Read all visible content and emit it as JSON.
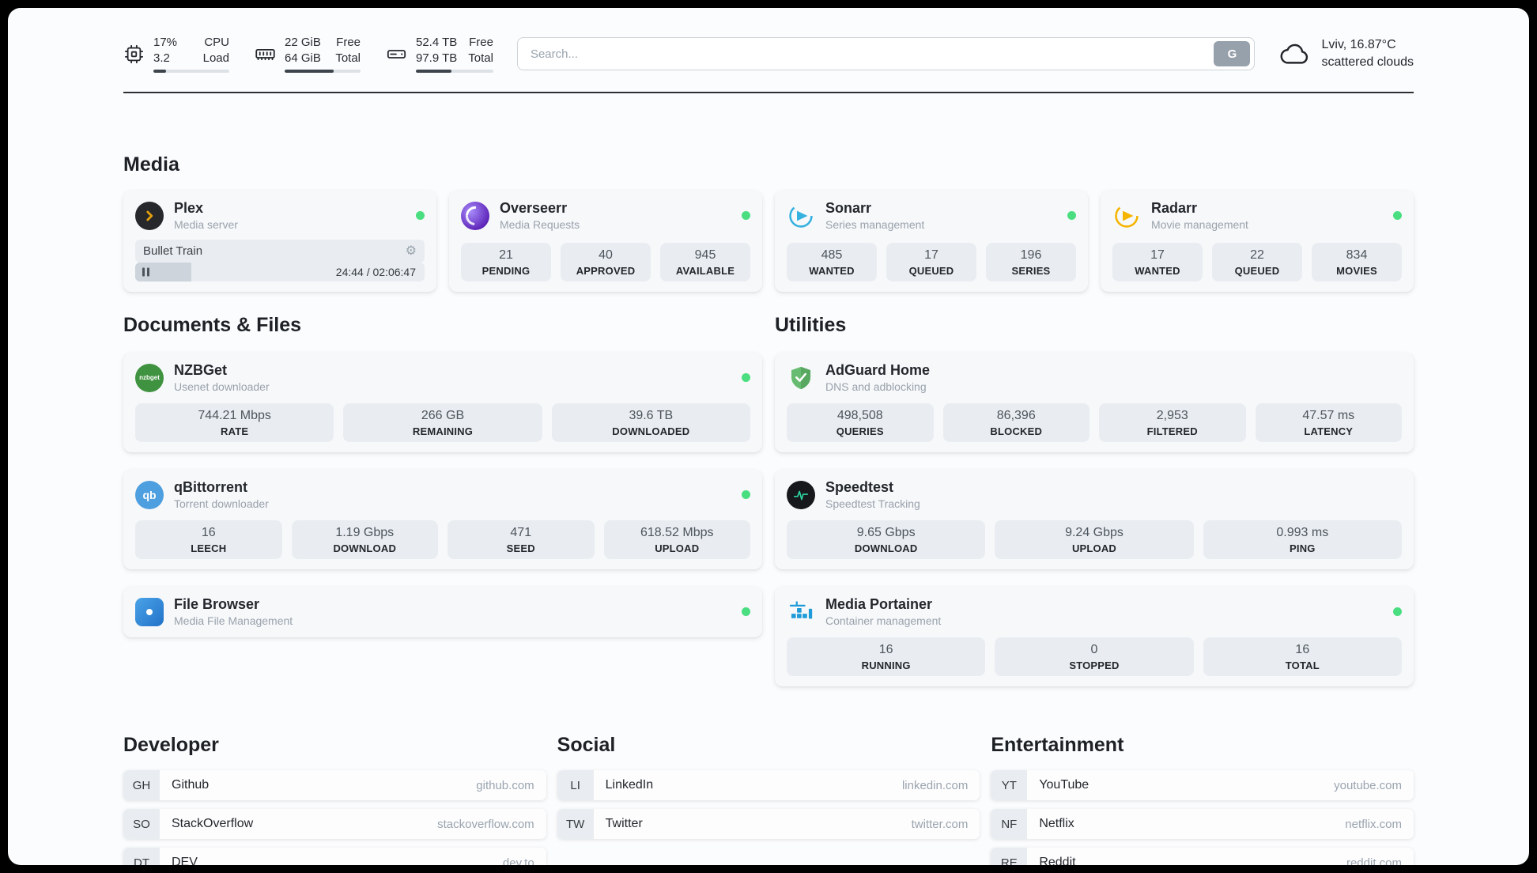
{
  "topbar": {
    "cpu": {
      "line1": "17%",
      "line2": "3.2",
      "label_line1": "CPU",
      "label_line2": "Load",
      "progress_pct": 17
    },
    "ram": {
      "line1": "22 GiB",
      "line2": "64 GiB",
      "label_line1": "Free",
      "label_line2": "Total",
      "progress_pct": 65
    },
    "disk": {
      "line1": "52.4 TB",
      "line2": "97.9 TB",
      "label_line1": "Free",
      "label_line2": "Total",
      "progress_pct": 46
    },
    "search": {
      "placeholder": "Search...",
      "button_label": "G"
    },
    "weather": {
      "location": "Lviv, 16.87°C",
      "condition": "scattered clouds"
    }
  },
  "media": {
    "title": "Media",
    "plex": {
      "name": "Plex",
      "subtitle": "Media server",
      "now_playing": "Bullet Train",
      "time": "24:44 / 02:06:47",
      "progress_pct": 19.5
    },
    "overseerr": {
      "name": "Overseerr",
      "subtitle": "Media Requests",
      "stats": [
        {
          "value": "21",
          "label": "PENDING"
        },
        {
          "value": "40",
          "label": "APPROVED"
        },
        {
          "value": "945",
          "label": "AVAILABLE"
        }
      ]
    },
    "sonarr": {
      "name": "Sonarr",
      "subtitle": "Series management",
      "stats": [
        {
          "value": "485",
          "label": "WANTED"
        },
        {
          "value": "17",
          "label": "QUEUED"
        },
        {
          "value": "196",
          "label": "SERIES"
        }
      ]
    },
    "radarr": {
      "name": "Radarr",
      "subtitle": "Movie management",
      "stats": [
        {
          "value": "17",
          "label": "WANTED"
        },
        {
          "value": "22",
          "label": "QUEUED"
        },
        {
          "value": "834",
          "label": "MOVIES"
        }
      ]
    }
  },
  "documents": {
    "title": "Documents & Files",
    "nzbget": {
      "name": "NZBGet",
      "subtitle": "Usenet downloader",
      "icon_text": "nzbget",
      "stats": [
        {
          "value": "744.21 Mbps",
          "label": "RATE"
        },
        {
          "value": "266 GB",
          "label": "REMAINING"
        },
        {
          "value": "39.6 TB",
          "label": "DOWNLOADED"
        }
      ]
    },
    "qbittorrent": {
      "name": "qBittorrent",
      "subtitle": "Torrent downloader",
      "icon_text": "qb",
      "stats": [
        {
          "value": "16",
          "label": "LEECH"
        },
        {
          "value": "1.19 Gbps",
          "label": "DOWNLOAD"
        },
        {
          "value": "471",
          "label": "SEED"
        },
        {
          "value": "618.52 Mbps",
          "label": "UPLOAD"
        }
      ]
    },
    "filebrowser": {
      "name": "File Browser",
      "subtitle": "Media File Management"
    }
  },
  "utilities": {
    "title": "Utilities",
    "adguard": {
      "name": "AdGuard Home",
      "subtitle": "DNS and adblocking",
      "stats": [
        {
          "value": "498,508",
          "label": "QUERIES"
        },
        {
          "value": "86,396",
          "label": "BLOCKED"
        },
        {
          "value": "2,953",
          "label": "FILTERED"
        },
        {
          "value": "47.57 ms",
          "label": "LATENCY"
        }
      ]
    },
    "speedtest": {
      "name": "Speedtest",
      "subtitle": "Speedtest Tracking",
      "stats": [
        {
          "value": "9.65 Gbps",
          "label": "DOWNLOAD"
        },
        {
          "value": "9.24 Gbps",
          "label": "UPLOAD"
        },
        {
          "value": "0.993 ms",
          "label": "PING"
        }
      ]
    },
    "portainer": {
      "name": "Media Portainer",
      "subtitle": "Container management",
      "stats": [
        {
          "value": "16",
          "label": "RUNNING"
        },
        {
          "value": "0",
          "label": "STOPPED"
        },
        {
          "value": "16",
          "label": "TOTAL"
        }
      ]
    }
  },
  "bookmarks": {
    "developer": {
      "title": "Developer",
      "items": [
        {
          "abbr": "GH",
          "name": "Github",
          "url": "github.com"
        },
        {
          "abbr": "SO",
          "name": "StackOverflow",
          "url": "stackoverflow.com"
        },
        {
          "abbr": "DT",
          "name": "DEV",
          "url": "dev.to"
        }
      ]
    },
    "social": {
      "title": "Social",
      "items": [
        {
          "abbr": "LI",
          "name": "LinkedIn",
          "url": "linkedin.com"
        },
        {
          "abbr": "TW",
          "name": "Twitter",
          "url": "twitter.com"
        }
      ]
    },
    "entertainment": {
      "title": "Entertainment",
      "items": [
        {
          "abbr": "YT",
          "name": "YouTube",
          "url": "youtube.com"
        },
        {
          "abbr": "NF",
          "name": "Netflix",
          "url": "netflix.com"
        },
        {
          "abbr": "RE",
          "name": "Reddit",
          "url": "reddit.com"
        }
      ]
    }
  },
  "colors": {
    "status_online": "#4ade80",
    "plex_yellow": "#e5a00d",
    "sonarr_blue": "#35b1e0",
    "radarr_orange": "#f5b400",
    "nzbget_green": "#3f923f",
    "qbittorrent_blue": "#4e9fdf",
    "adguard_green": "#68bc71",
    "speedtest_green": "#2dd4a0",
    "portainer_blue": "#1f9cd7",
    "search_button_gray": "#97a1ab"
  }
}
